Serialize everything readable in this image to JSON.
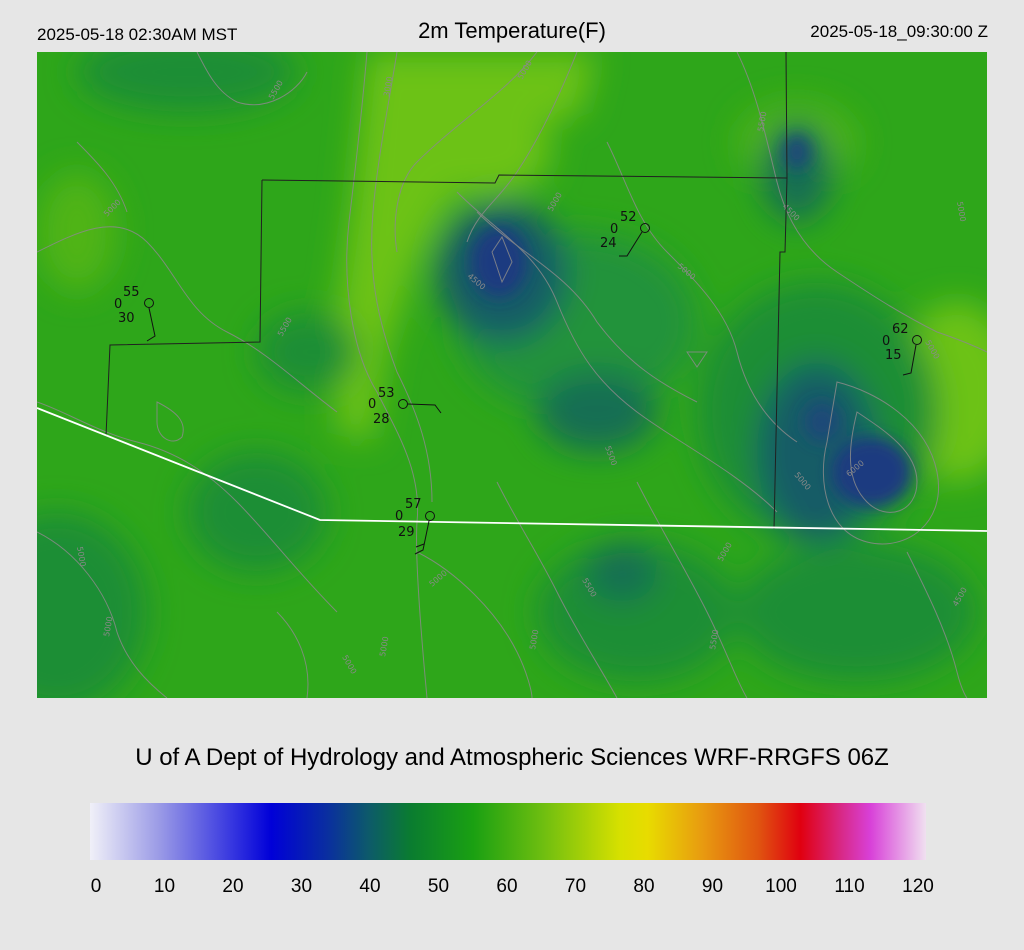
{
  "header": {
    "local_time": "2025-05-18 02:30AM MST",
    "title": "2m Temperature(F)",
    "utc_time": "2025-05-18_09:30:00 Z"
  },
  "credit": "U of A Dept of Hydrology and Atmospheric Sciences WRF-RRGFS 06Z",
  "colorbar": {
    "ticks": [
      "0",
      "10",
      "20",
      "30",
      "40",
      "50",
      "60",
      "70",
      "80",
      "90",
      "100",
      "110",
      "120"
    ],
    "range": [
      0,
      120
    ],
    "stops": [
      {
        "value": 0,
        "color": "#f0f0f8"
      },
      {
        "value": 10,
        "color": "#9a9ae6"
      },
      {
        "value": 20,
        "color": "#3a3ae0"
      },
      {
        "value": 26,
        "color": "#0000d8"
      },
      {
        "value": 34,
        "color": "#0a2ea0"
      },
      {
        "value": 40,
        "color": "#0d5a6a"
      },
      {
        "value": 46,
        "color": "#0a7c30"
      },
      {
        "value": 55,
        "color": "#1aa012"
      },
      {
        "value": 65,
        "color": "#6ebe10"
      },
      {
        "value": 76,
        "color": "#d6e000"
      },
      {
        "value": 80,
        "color": "#e8dc00"
      },
      {
        "value": 88,
        "color": "#e89a10"
      },
      {
        "value": 96,
        "color": "#e05410"
      },
      {
        "value": 102,
        "color": "#e00010"
      },
      {
        "value": 108,
        "color": "#d82a8a"
      },
      {
        "value": 112,
        "color": "#d840d8"
      },
      {
        "value": 120,
        "color": "#f0e0f0"
      }
    ]
  },
  "map": {
    "base_color": "#2ea61a",
    "colors": {
      "warm": "#6cc212",
      "cool": "#1f8e34",
      "cold": "#135c66",
      "coldest": "#1a3a80",
      "contour": "#8a8a8a",
      "border": "#202020",
      "boundary": "#ffffff"
    },
    "contour_labels": [
      "5000",
      "5500",
      "4500",
      "6000",
      "3000",
      "4000"
    ]
  },
  "stations": [
    {
      "name": "station-1",
      "temp": "55",
      "dew": "30",
      "cloud": "0"
    },
    {
      "name": "station-2",
      "temp": "53",
      "dew": "28",
      "cloud": "0"
    },
    {
      "name": "station-3",
      "temp": "57",
      "dew": "29",
      "cloud": "0"
    },
    {
      "name": "station-4",
      "temp": "52",
      "dew": "24",
      "cloud": "0"
    },
    {
      "name": "station-5",
      "temp": "62",
      "dew": "15",
      "cloud": "0"
    }
  ]
}
